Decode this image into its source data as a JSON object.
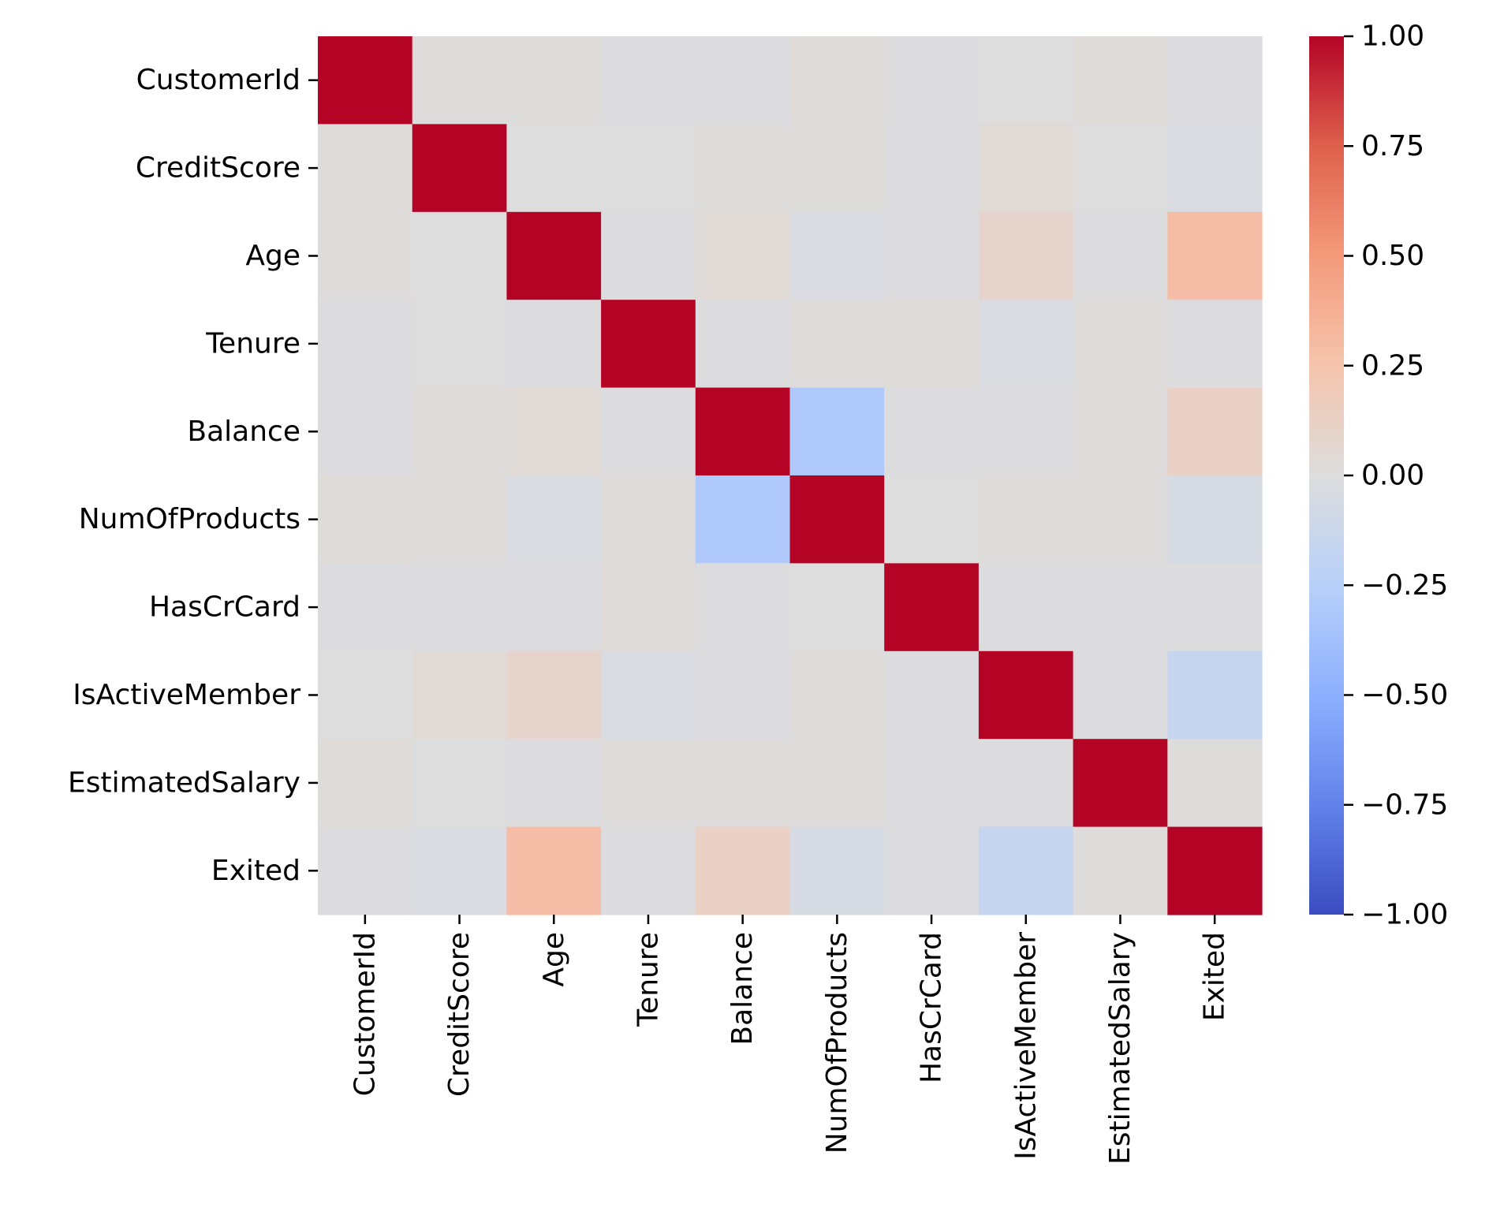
{
  "chart_data": {
    "type": "heatmap",
    "title": "",
    "xlabel": "",
    "ylabel": "",
    "rows": [
      "CustomerId",
      "CreditScore",
      "Age",
      "Tenure",
      "Balance",
      "NumOfProducts",
      "HasCrCard",
      "IsActiveMember",
      "EstimatedSalary",
      "Exited"
    ],
    "columns": [
      "CustomerId",
      "CreditScore",
      "Age",
      "Tenure",
      "Balance",
      "NumOfProducts",
      "HasCrCard",
      "IsActiveMember",
      "EstimatedSalary",
      "Exited"
    ],
    "values": [
      [
        1.0,
        0.01,
        0.01,
        -0.01,
        -0.01,
        0.02,
        -0.01,
        0.0,
        0.02,
        -0.01
      ],
      [
        0.01,
        1.0,
        0.0,
        0.0,
        0.01,
        0.01,
        -0.01,
        0.03,
        0.0,
        -0.03
      ],
      [
        0.01,
        0.0,
        1.0,
        -0.01,
        0.03,
        -0.03,
        -0.01,
        0.09,
        -0.01,
        0.29
      ],
      [
        -0.01,
        0.0,
        -0.01,
        1.0,
        -0.01,
        0.01,
        0.02,
        -0.03,
        0.01,
        -0.01
      ],
      [
        -0.01,
        0.01,
        0.03,
        -0.01,
        1.0,
        -0.3,
        -0.01,
        -0.01,
        0.01,
        0.12
      ],
      [
        0.02,
        0.01,
        -0.03,
        0.01,
        -0.3,
        1.0,
        0.0,
        0.01,
        0.01,
        -0.05
      ],
      [
        -0.01,
        -0.01,
        -0.01,
        0.02,
        -0.01,
        0.0,
        1.0,
        -0.01,
        -0.01,
        -0.01
      ],
      [
        0.0,
        0.03,
        0.09,
        -0.03,
        -0.01,
        0.01,
        -0.01,
        1.0,
        -0.01,
        -0.16
      ],
      [
        0.02,
        0.0,
        -0.01,
        0.01,
        0.01,
        0.01,
        -0.01,
        -0.01,
        1.0,
        0.01
      ],
      [
        -0.01,
        -0.03,
        0.29,
        -0.01,
        0.12,
        -0.05,
        -0.01,
        -0.16,
        0.01,
        1.0
      ]
    ],
    "colormap": "coolwarm",
    "vmin": -1.0,
    "vmax": 1.0,
    "colorbar_ticks": [
      "1.00",
      "0.75",
      "0.50",
      "0.25",
      "0.00",
      "−0.25",
      "−0.50",
      "−0.75",
      "−1.00"
    ],
    "colorbar_tick_values": [
      1.0,
      0.75,
      0.5,
      0.25,
      0.0,
      -0.25,
      -0.5,
      -0.75,
      -1.0
    ],
    "legend": "colorbar-right",
    "grid": false
  }
}
